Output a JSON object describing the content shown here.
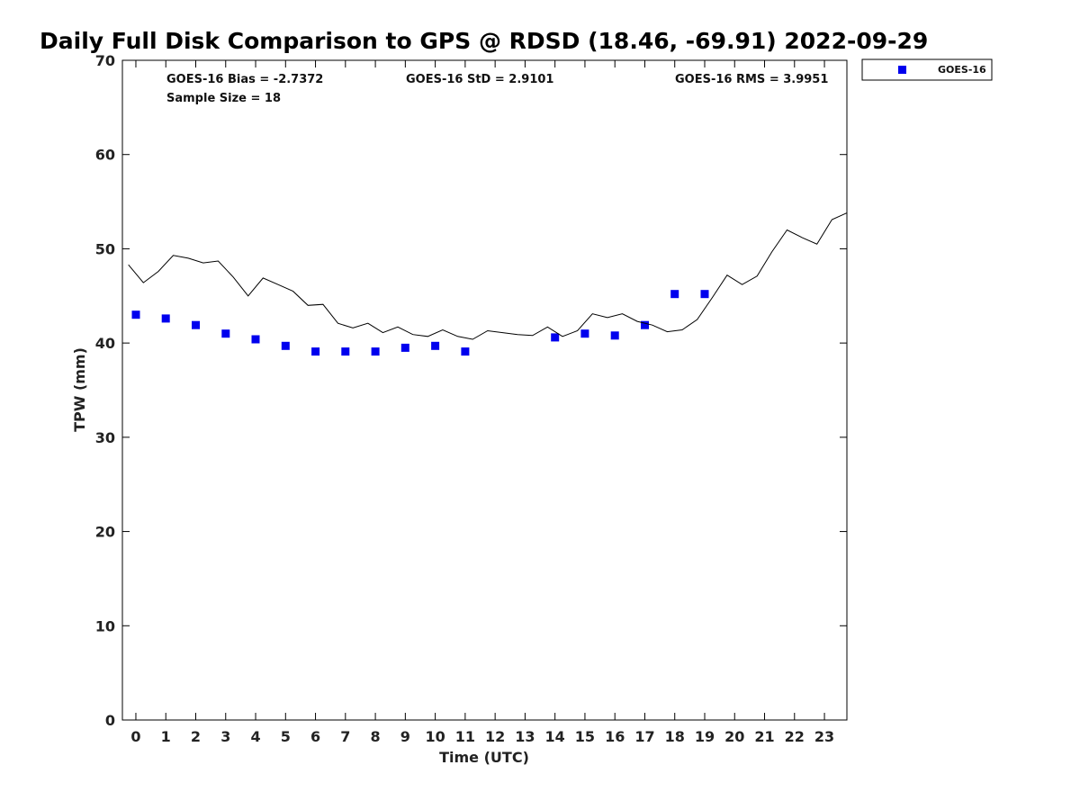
{
  "chart_data": {
    "type": "scatter",
    "title": "Daily Full Disk Comparison to GPS @ RDSD (18.46, -69.91) 2022-09-29",
    "xlabel": "Time (UTC)",
    "ylabel": "TPW (mm)",
    "xlim": [
      -0.45,
      23.75
    ],
    "ylim": [
      0,
      70
    ],
    "x_ticks": [
      0,
      1,
      2,
      3,
      4,
      5,
      6,
      7,
      8,
      9,
      10,
      11,
      12,
      13,
      14,
      15,
      16,
      17,
      18,
      19,
      20,
      21,
      22,
      23
    ],
    "y_ticks": [
      0,
      10,
      20,
      30,
      40,
      50,
      60,
      70
    ],
    "grid": false,
    "legend_position": "top-right outside",
    "stats": {
      "bias": "GOES-16 Bias = -2.7372",
      "std": "GOES-16 StD = 2.9101",
      "rms": "GOES-16 RMS = 3.9951",
      "sample": "Sample Size = 18"
    },
    "series": [
      {
        "name": "GOES-16",
        "style": "markers",
        "marker": "square",
        "color": "#0000ee",
        "x": [
          0,
          1,
          2,
          3,
          4,
          5,
          6,
          7,
          8,
          9,
          10,
          11,
          14,
          15,
          16,
          17,
          18,
          19
        ],
        "y": [
          43.0,
          42.6,
          41.9,
          41.0,
          40.4,
          39.7,
          39.1,
          39.1,
          39.1,
          39.5,
          39.7,
          39.1,
          40.6,
          41.0,
          40.8,
          41.9,
          45.2,
          45.2
        ]
      },
      {
        "style": "line",
        "color": "#000000",
        "x": [
          -0.25,
          0.25,
          0.75,
          1.25,
          1.75,
          2.25,
          2.75,
          3.25,
          3.75,
          4.25,
          4.75,
          5.25,
          5.75,
          6.25,
          6.75,
          7.25,
          7.75,
          8.25,
          8.75,
          9.25,
          9.75,
          10.25,
          10.75,
          11.25,
          11.75,
          12.25,
          12.75,
          13.25,
          13.75,
          14.25,
          14.75,
          15.25,
          15.75,
          16.25,
          16.75,
          17.25,
          17.75,
          18.25,
          18.75,
          19.25,
          19.75,
          20.25,
          20.75,
          21.25,
          21.75,
          22.25,
          22.75,
          23.25,
          23.75
        ],
        "y": [
          48.3,
          46.4,
          47.6,
          49.3,
          49.0,
          48.5,
          48.7,
          47.0,
          45.0,
          46.9,
          46.2,
          45.5,
          44.0,
          44.1,
          42.1,
          41.6,
          42.1,
          41.1,
          41.7,
          40.9,
          40.7,
          41.4,
          40.7,
          40.4,
          41.3,
          41.1,
          40.9,
          40.8,
          41.7,
          40.7,
          41.3,
          43.1,
          42.7,
          43.1,
          42.3,
          41.9,
          41.2,
          41.4,
          42.5,
          44.8,
          47.2,
          46.2,
          47.1,
          49.7,
          52.0,
          51.2,
          50.5,
          53.1,
          53.8
        ]
      }
    ]
  }
}
